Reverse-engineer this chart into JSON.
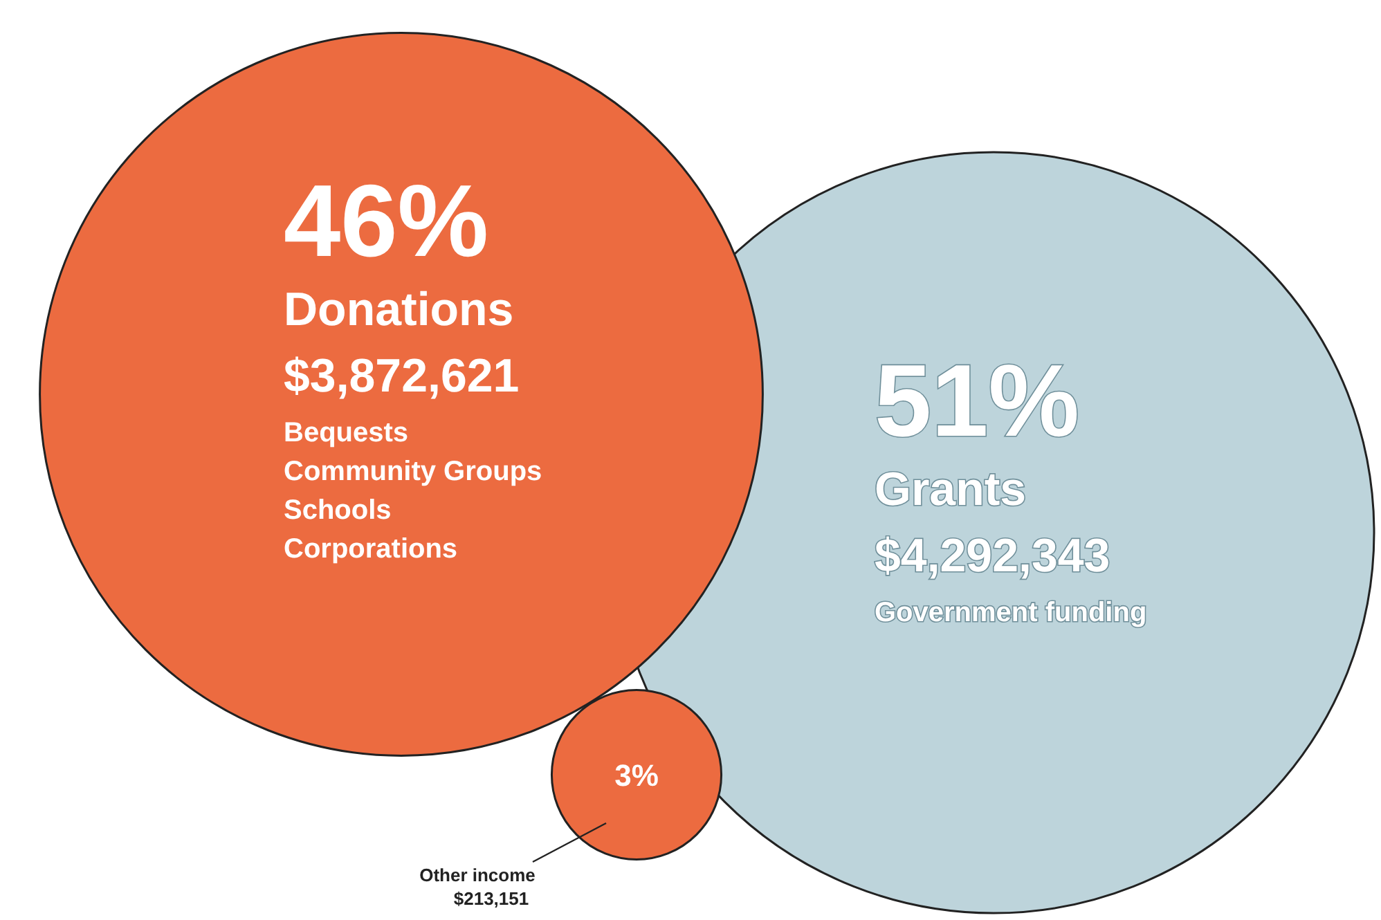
{
  "chart_data": {
    "type": "other",
    "categories": [
      "Donations",
      "Grants",
      "Other income"
    ],
    "values": [
      3872621,
      4292343,
      213151
    ],
    "value_labels": [
      "$3,872,621",
      "$4,292,343",
      "$213,151"
    ],
    "colors": [
      "#ec6b40",
      "#bdd4db",
      "#ec6b40"
    ],
    "annotations": [
      {
        "text": "46%",
        "x": "Donations"
      },
      {
        "text": "51%",
        "x": "Grants"
      },
      {
        "text": "3%",
        "x": "Other income"
      },
      {
        "text": "Bequests",
        "x": "Donations"
      },
      {
        "text": "Community Groups",
        "x": "Donations"
      },
      {
        "text": "Schools",
        "x": "Donations"
      },
      {
        "text": "Corporations",
        "x": "Donations"
      },
      {
        "text": "Government funding",
        "x": "Grants"
      }
    ]
  }
}
